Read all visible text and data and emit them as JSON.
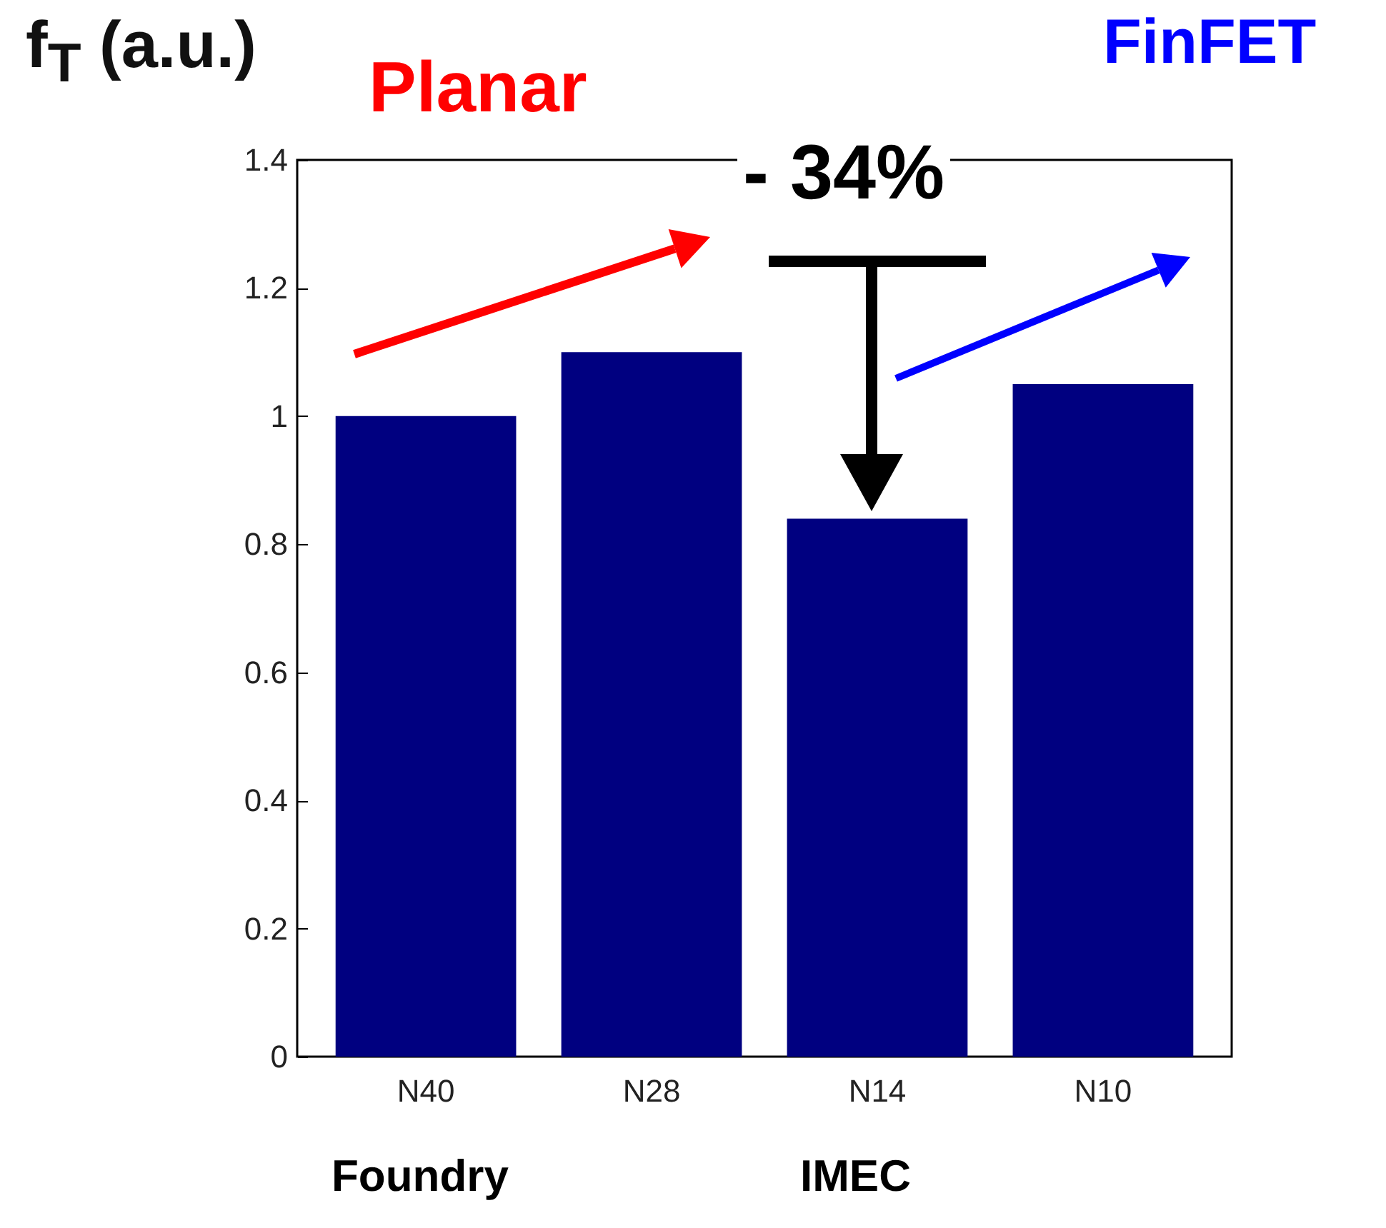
{
  "chart_data": {
    "type": "bar",
    "ylabel": "f$_{T}$ (a.u.)",
    "categories": [
      "N40",
      "N28",
      "N14",
      "N10"
    ],
    "values": [
      1.0,
      1.1,
      0.84,
      1.05
    ],
    "color": "#000080",
    "ylim": [
      0,
      1.4
    ],
    "yticks": [
      0,
      0.2,
      0.4,
      0.6,
      0.8,
      1,
      1.2,
      1.4
    ],
    "grid": false,
    "annotations": [
      "Planar",
      "FinFET",
      "- 34%",
      "Foundry",
      "IMEC"
    ]
  }
}
